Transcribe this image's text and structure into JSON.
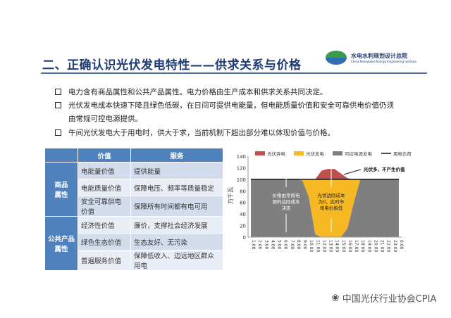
{
  "header": {
    "title": "二、正确认识光伏发电特性——供求关系与价格",
    "logo_name": "水电水利规划设计总院",
    "logo_en": "China Renewable Energy Engineering Institute",
    "logo_badge": "CREEI"
  },
  "bullets": [
    "电力含有商品属性和公共产品属性。电力价格由生产成本和供求关系共同决定。",
    "光伏发电成本快速下降且绿色低碳，在日间可提供电能量，但电能质量价值和安全可靠供电价值仍须",
    "由常规可控电源提供。",
    "午间光伏发电大于用电时，供大于求，当前机制下超出部分难以体现价值与价格。"
  ],
  "table": {
    "headers": [
      "",
      "价值",
      "服务"
    ],
    "groups": [
      {
        "label": "商品\n属性",
        "rows": [
          [
            "电能量价值",
            "提供能量"
          ],
          [
            "电能质量价值",
            "保障电压、频率等质量稳定"
          ],
          [
            "安全可靠供电价值",
            "保障所有时间都有电可用"
          ]
        ]
      },
      {
        "label": "公共产品\n属性",
        "rows": [
          [
            "经济性价值",
            "廉价，支撑社会经济发展"
          ],
          [
            "绿色生态价值",
            "生态友好、无污染"
          ],
          [
            "普遍服务价值",
            "保障低收入、边远地区群众用电"
          ]
        ]
      }
    ]
  },
  "chart_data": {
    "type": "area",
    "ylabel": "万千瓦",
    "ylim": [
      0,
      140
    ],
    "yticks": [
      0,
      20,
      40,
      60,
      80,
      100,
      120,
      140
    ],
    "categories": [
      "1:00",
      "2:00",
      "3:00",
      "4:00",
      "5:00",
      "6:00",
      "7:00",
      "8:00",
      "9:00",
      "10:00",
      "11:00",
      "12:00",
      "13:00",
      "14:00",
      "15:00",
      "16:00",
      "17:00",
      "18:00",
      "19:00",
      "20:00",
      "21:00",
      "22:00",
      "23:00",
      "0:00"
    ],
    "series": [
      {
        "name": "光伏弃电",
        "color": "#c0504d",
        "values": [
          0,
          0,
          0,
          0,
          0,
          0,
          0,
          0,
          0,
          0,
          0,
          15,
          18,
          18,
          10,
          2,
          0,
          0,
          0,
          0,
          0,
          0,
          0,
          0
        ]
      },
      {
        "name": "光伏发电",
        "color": "#f6b924",
        "values": [
          0,
          0,
          0,
          0,
          0,
          0,
          0,
          0,
          2,
          30,
          95,
          100,
          100,
          100,
          100,
          85,
          40,
          0,
          0,
          0,
          0,
          0,
          0,
          0
        ]
      },
      {
        "name": "可控电源发电",
        "color": "#7f7f7f",
        "values": [
          100,
          100,
          100,
          100,
          100,
          100,
          100,
          100,
          98,
          70,
          5,
          0,
          0,
          0,
          0,
          15,
          60,
          100,
          100,
          100,
          100,
          100,
          100,
          100
        ]
      },
      {
        "name": "用电负荷",
        "color": "#111111",
        "values": [
          100,
          100,
          100,
          100,
          100,
          100,
          100,
          100,
          100,
          100,
          100,
          100,
          100,
          100,
          100,
          100,
          100,
          100,
          100,
          100,
          100,
          100,
          100,
          100
        ]
      }
    ],
    "annotations": [
      "光伏多，不产生价值",
      "价格由常规电源的边际成本决定",
      "光伏边际成本为0，此时市场电价极低"
    ],
    "legend": "top"
  },
  "footer": {
    "text": "中国光伏行业协会CPIA"
  }
}
